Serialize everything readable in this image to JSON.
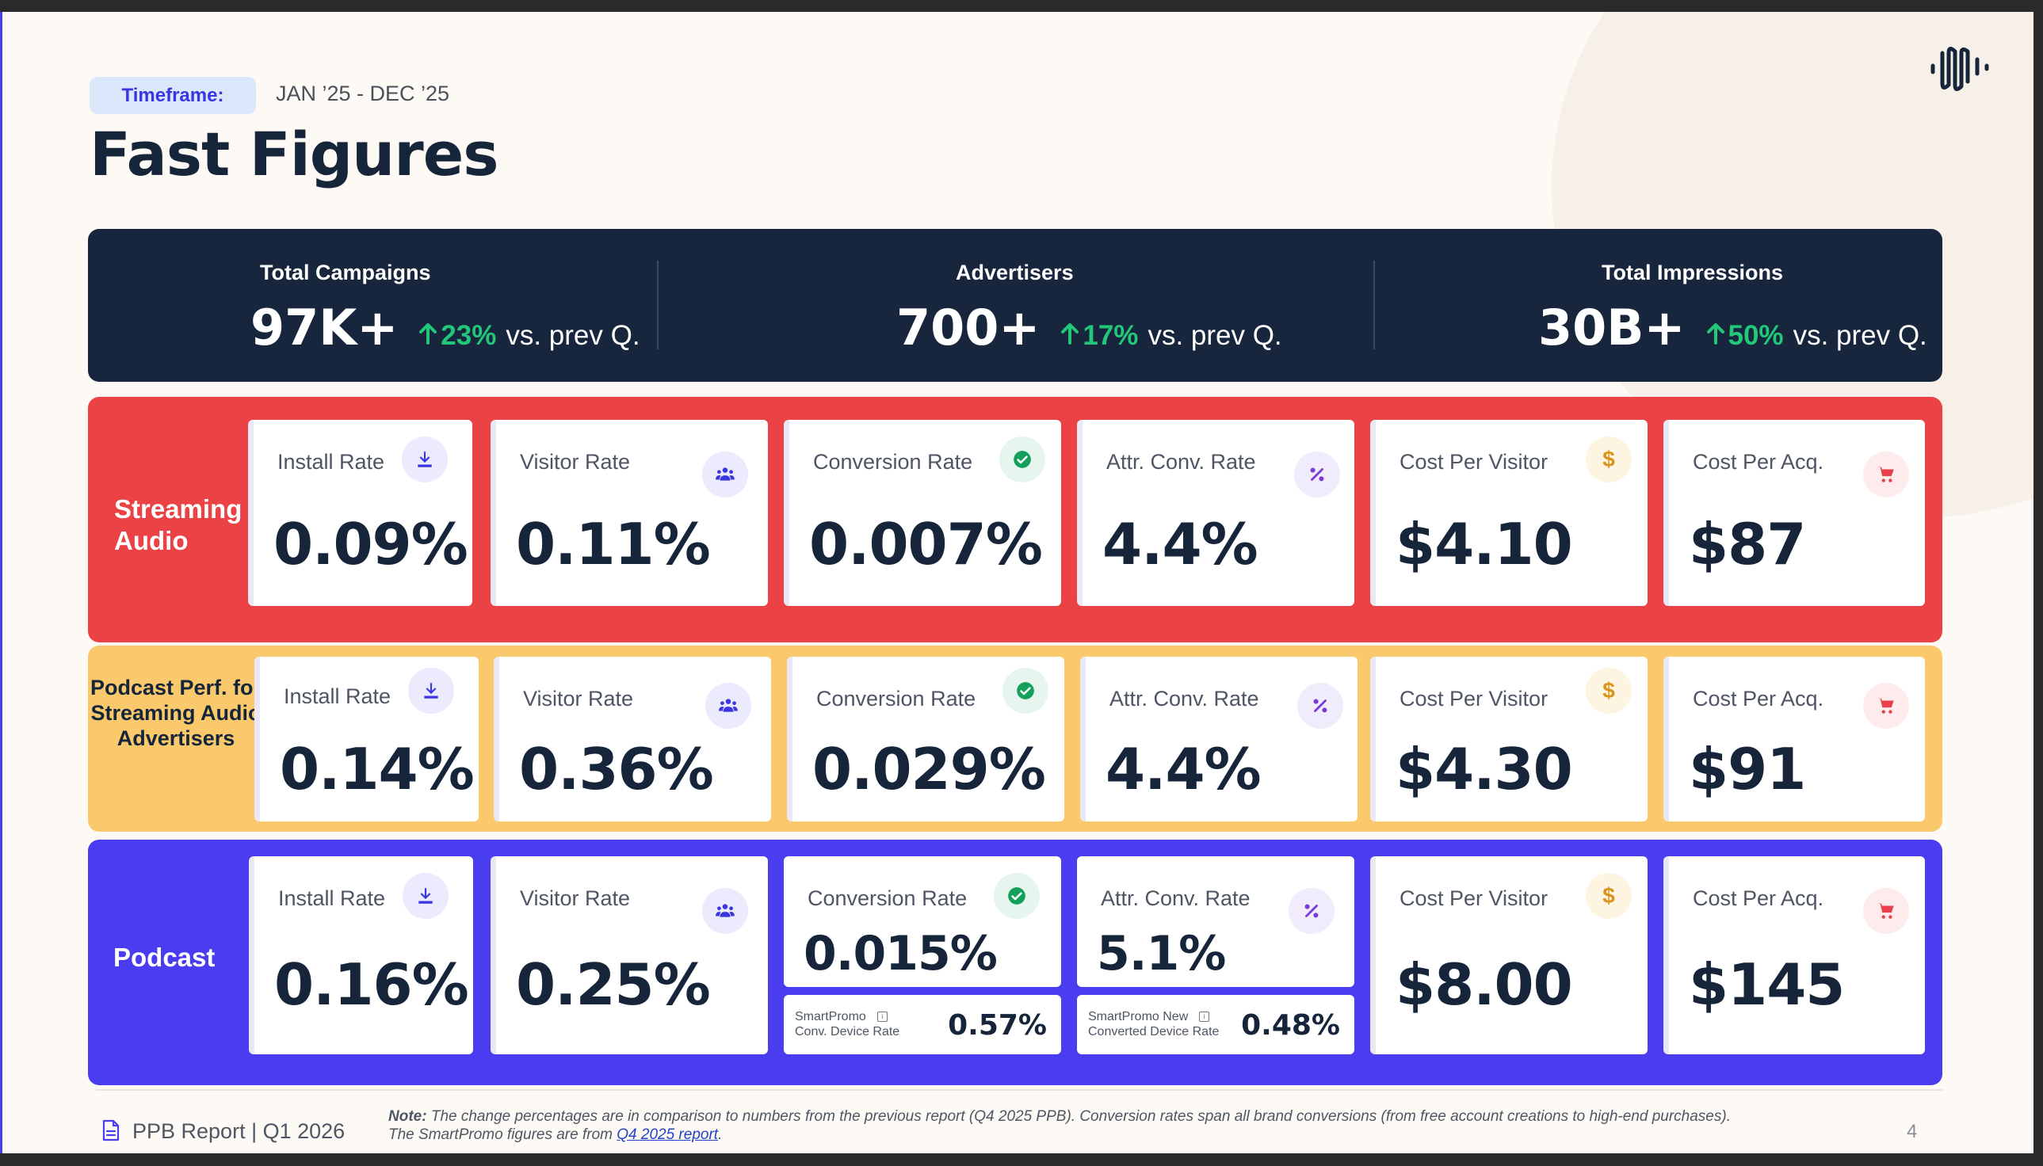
{
  "header": {
    "timeframe_label": "Timeframe:",
    "timeframe_range": "JAN ’25 - DEC ’25",
    "title": "Fast Figures"
  },
  "summary": [
    {
      "label": "Total Campaigns",
      "value": "97K+",
      "change": "23%",
      "suffix": "vs. prev Q."
    },
    {
      "label": "Advertisers",
      "value": "700+",
      "change": "17%",
      "suffix": "vs. prev Q."
    },
    {
      "label": "Total Impressions",
      "value": "30B+",
      "change": "50%",
      "suffix": "vs. prev Q."
    }
  ],
  "bands": [
    {
      "label": "Streaming Audio",
      "color": "#ea4245",
      "metrics": [
        {
          "label": "Install Rate",
          "value": "0.09%",
          "icon": "download-icon"
        },
        {
          "label": "Visitor Rate",
          "value": "0.11%",
          "icon": "users-icon"
        },
        {
          "label": "Conversion Rate",
          "value": "0.007%",
          "icon": "check-circle-icon"
        },
        {
          "label": "Attr. Conv.  Rate",
          "value": "4.4%",
          "icon": "percent-icon"
        },
        {
          "label": "Cost Per Visitor",
          "value": "$4.10",
          "icon": "dollar-icon"
        },
        {
          "label": "Cost Per Acq.",
          "value": "$87",
          "icon": "cart-icon"
        }
      ]
    },
    {
      "label": "Podcast Perf. for Streaming Audio Advertisers",
      "color": "#f9c96b",
      "metrics": [
        {
          "label": "Install Rate",
          "value": "0.14%",
          "icon": "download-icon"
        },
        {
          "label": "Visitor Rate",
          "value": "0.36%",
          "icon": "users-icon"
        },
        {
          "label": "Conversion Rate",
          "value": "0.029%",
          "icon": "check-circle-icon"
        },
        {
          "label": "Attr. Conv.  Rate",
          "value": "4.4%",
          "icon": "percent-icon"
        },
        {
          "label": "Cost Per Visitor",
          "value": "$4.30",
          "icon": "dollar-icon"
        },
        {
          "label": "Cost Per Acq.",
          "value": "$91",
          "icon": "cart-icon"
        }
      ]
    },
    {
      "label": "Podcast",
      "color": "#4a3df0",
      "metrics": [
        {
          "label": "Install Rate",
          "value": "0.16%",
          "icon": "download-icon"
        },
        {
          "label": "Visitor Rate",
          "value": "0.25%",
          "icon": "users-icon"
        },
        {
          "label": "Conversion Rate",
          "value": "0.015%",
          "icon": "check-circle-icon",
          "sub_label_1": "SmartPromo",
          "sub_label_2": "Conv. Device Rate",
          "sub_value": "0.57%"
        },
        {
          "label": "Attr. Conv.  Rate",
          "value": "5.1%",
          "icon": "percent-icon",
          "sub_label_1": "SmartPromo New",
          "sub_label_2": "Converted Device Rate",
          "sub_value": "0.48%"
        },
        {
          "label": "Cost Per Visitor",
          "value": "$8.00",
          "icon": "dollar-icon"
        },
        {
          "label": "Cost Per Acq.",
          "value": "$145",
          "icon": "cart-icon"
        }
      ]
    }
  ],
  "footer": {
    "report": "PPB Report | Q1 2026",
    "note_label": "Note:",
    "note_text": "The change percentages are in comparison to numbers from the previous report (Q4 2025 PPB). Conversion rates span all brand conversions (from free account creations to high-end purchases).",
    "note_line2": "The SmartPromo figures are from",
    "note_link": "Q4 2025 report",
    "page": "4"
  },
  "info_glyph": "i"
}
